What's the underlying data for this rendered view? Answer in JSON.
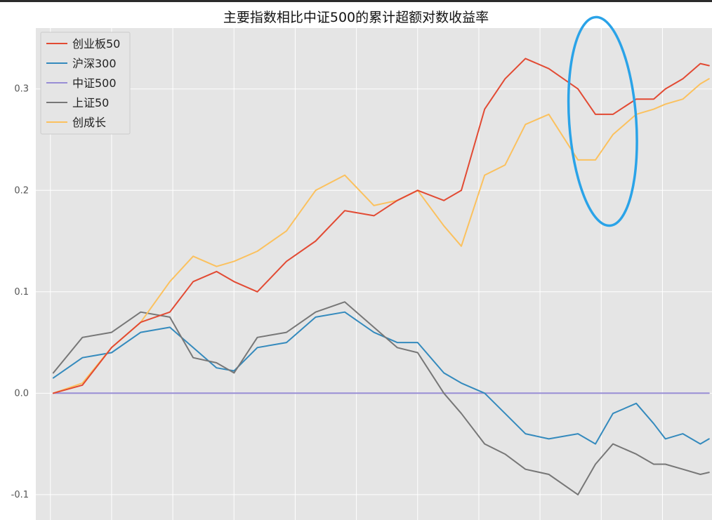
{
  "chart_data": {
    "type": "line",
    "title": "主要指数相比中证500的累计超额对数收益率",
    "xlabel": "",
    "ylabel": "",
    "ylim": [
      -0.125,
      0.36
    ],
    "xlim": [
      -6,
      226
    ],
    "yticks": [
      -0.1,
      0.0,
      0.1,
      0.2,
      0.3
    ],
    "ytick_labels": [
      "-0.1",
      "0.0",
      "0.1",
      "0.2",
      "0.3"
    ],
    "x_gridlines": [
      -1,
      20,
      41,
      62,
      83,
      104,
      125,
      146,
      167,
      188,
      209,
      230
    ],
    "grid": true,
    "legend_position": "upper-left",
    "x": [
      0,
      10,
      20,
      30,
      40,
      48,
      56,
      62,
      70,
      80,
      90,
      100,
      110,
      118,
      125,
      134,
      140,
      148,
      155,
      162,
      170,
      180,
      186,
      192,
      200,
      206,
      210,
      216,
      222,
      225
    ],
    "series": [
      {
        "name": "创业板50",
        "color": "#e24a33",
        "values": [
          0.0,
          0.008,
          0.045,
          0.07,
          0.08,
          0.11,
          0.12,
          0.11,
          0.1,
          0.13,
          0.15,
          0.18,
          0.175,
          0.19,
          0.2,
          0.19,
          0.2,
          0.28,
          0.31,
          0.33,
          0.32,
          0.3,
          0.275,
          0.275,
          0.29,
          0.29,
          0.3,
          0.31,
          0.325,
          0.323
        ]
      },
      {
        "name": "沪深300",
        "color": "#348abd",
        "values": [
          0.015,
          0.035,
          0.04,
          0.06,
          0.065,
          0.045,
          0.025,
          0.022,
          0.045,
          0.05,
          0.075,
          0.08,
          0.06,
          0.05,
          0.05,
          0.02,
          0.01,
          0.0,
          -0.02,
          -0.04,
          -0.045,
          -0.04,
          -0.05,
          -0.02,
          -0.01,
          -0.03,
          -0.045,
          -0.04,
          -0.05,
          -0.045
        ]
      },
      {
        "name": "中证500",
        "color": "#988ed5",
        "values": [
          0.0,
          0.0,
          0.0,
          0.0,
          0.0,
          0.0,
          0.0,
          0.0,
          0.0,
          0.0,
          0.0,
          0.0,
          0.0,
          0.0,
          0.0,
          0.0,
          0.0,
          0.0,
          0.0,
          0.0,
          0.0,
          0.0,
          0.0,
          0.0,
          0.0,
          0.0,
          0.0,
          0.0,
          0.0,
          0.0
        ]
      },
      {
        "name": "上证50",
        "color": "#777777",
        "values": [
          0.02,
          0.055,
          0.06,
          0.08,
          0.075,
          0.035,
          0.03,
          0.02,
          0.055,
          0.06,
          0.08,
          0.09,
          0.065,
          0.045,
          0.04,
          0.0,
          -0.02,
          -0.05,
          -0.06,
          -0.075,
          -0.08,
          -0.1,
          -0.07,
          -0.05,
          -0.06,
          -0.07,
          -0.07,
          -0.075,
          -0.08,
          -0.078
        ]
      },
      {
        "name": "创成长",
        "color": "#fbc15e",
        "values": [
          0.0,
          0.01,
          0.045,
          0.07,
          0.11,
          0.135,
          0.125,
          0.13,
          0.14,
          0.16,
          0.2,
          0.215,
          0.185,
          0.19,
          0.2,
          0.165,
          0.145,
          0.215,
          0.225,
          0.265,
          0.275,
          0.23,
          0.23,
          0.255,
          0.275,
          0.28,
          0.285,
          0.29,
          0.305,
          0.31
        ]
      }
    ],
    "annotations": [
      {
        "shape": "ellipse",
        "color": "#2aa3e8",
        "x_center": 188.5,
        "y_center": 0.268,
        "x_radius": 11.5,
        "y_radius": 0.103
      }
    ]
  }
}
